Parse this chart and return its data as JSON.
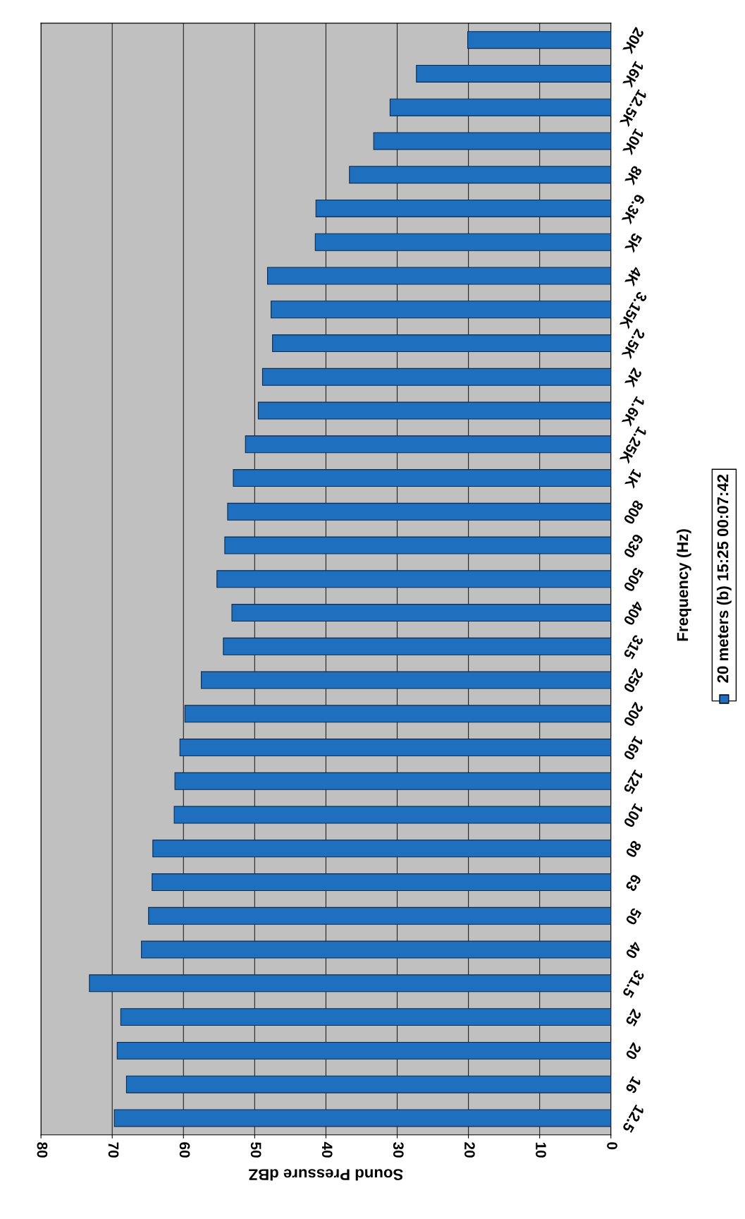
{
  "chart_data": {
    "type": "bar",
    "orientation": "horizontal",
    "xlabel": "Sound Pressure dBZ",
    "ylabel": "Frequency (Hz)",
    "categories": [
      "20K",
      "16K",
      "12.5K",
      "10K",
      "8K",
      "6.3K",
      "5K",
      "4K",
      "3.15K",
      "2.5K",
      "2K",
      "1.6K",
      "1.25K",
      "1K",
      "800",
      "630",
      "500",
      "400",
      "315",
      "250",
      "200",
      "160",
      "125",
      "100",
      "80",
      "63",
      "50",
      "40",
      "31.5",
      "25",
      "20",
      "16",
      "12.5"
    ],
    "series": [
      {
        "name": "20 meters (b) 15:25 00:07:42",
        "color": "#1f6fbf",
        "values": [
          20.1,
          27.3,
          31.0,
          33.3,
          36.7,
          41.4,
          41.5,
          48.2,
          47.7,
          47.5,
          48.9,
          49.5,
          51.3,
          53.0,
          53.8,
          54.2,
          55.3,
          53.2,
          54.4,
          57.5,
          59.8,
          60.5,
          61.2,
          61.3,
          64.3,
          64.4,
          64.9,
          65.9,
          73.2,
          68.8,
          69.3,
          68.0,
          69.7
        ]
      }
    ],
    "xlim": [
      80,
      0
    ],
    "xticks": [
      0,
      10,
      20,
      30,
      40,
      50,
      60,
      70,
      80
    ],
    "grid": "x",
    "legend": "right"
  }
}
